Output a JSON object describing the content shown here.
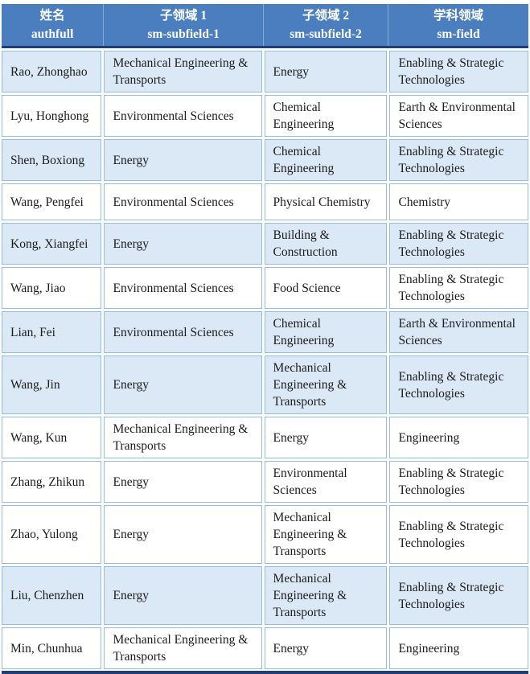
{
  "table": {
    "columns": [
      {
        "zh": "姓名",
        "en": "authfull"
      },
      {
        "zh": "子领域 1",
        "en": "sm-subfield-1"
      },
      {
        "zh": "子领域 2",
        "en": "sm-subfield-2"
      },
      {
        "zh": "学科领域",
        "en": "sm-field"
      }
    ],
    "rows": [
      {
        "authfull": "Rao, Zhonghao",
        "subfield1": "Mechanical Engineering & Transports",
        "subfield2": "Energy",
        "field": "Enabling & Strategic Technologies",
        "shaded": true
      },
      {
        "authfull": "Lyu, Honghong",
        "subfield1": "Environmental Sciences",
        "subfield2": "Chemical Engineering",
        "field": "Earth & Environmental Sciences",
        "shaded": false
      },
      {
        "authfull": "Shen, Boxiong",
        "subfield1": "Energy",
        "subfield2": "Chemical Engineering",
        "field": "Enabling & Strategic Technologies",
        "shaded": true
      },
      {
        "authfull": "Wang, Pengfei",
        "subfield1": "Environmental Sciences",
        "subfield2": "Physical Chemistry",
        "field": "Chemistry",
        "shaded": false
      },
      {
        "authfull": "Kong, Xiangfei",
        "subfield1": "Energy",
        "subfield2": "Building & Construction",
        "field": "Enabling & Strategic Technologies",
        "shaded": true
      },
      {
        "authfull": "Wang, Jiao",
        "subfield1": "Environmental Sciences",
        "subfield2": "Food Science",
        "field": "Enabling & Strategic Technologies",
        "shaded": false
      },
      {
        "authfull": "Lian, Fei",
        "subfield1": "Environmental Sciences",
        "subfield2": "Chemical Engineering",
        "field": "Earth & Environmental Sciences",
        "shaded": true
      },
      {
        "authfull": "Wang, Jin",
        "subfield1": "Energy",
        "subfield2": "Mechanical Engineering & Transports",
        "field": "Enabling & Strategic Technologies",
        "shaded": true
      },
      {
        "authfull": "Wang, Kun",
        "subfield1": "Mechanical Engineering & Transports",
        "subfield2": "Energy",
        "field": "Engineering",
        "shaded": false
      },
      {
        "authfull": "Zhang, Zhikun",
        "subfield1": "Energy",
        "subfield2": "Environmental Sciences",
        "field": "Enabling & Strategic Technologies",
        "shaded": false
      },
      {
        "authfull": "Zhao, Yulong",
        "subfield1": "Energy",
        "subfield2": "Mechanical Engineering & Transports",
        "field": "Enabling & Strategic Technologies",
        "shaded": false
      },
      {
        "authfull": "Liu, Chenzhen",
        "subfield1": "Energy",
        "subfield2": "Mechanical Engineering & Transports",
        "field": "Enabling & Strategic Technologies",
        "shaded": true
      },
      {
        "authfull": "Min, Chunhua",
        "subfield1": "Mechanical Engineering & Transports",
        "subfield2": "Energy",
        "field": "Engineering",
        "shaded": false
      }
    ]
  },
  "colors": {
    "header_bg": "#4a7ebf",
    "header_text": "#ffffff",
    "header_divider": "#86abd9",
    "dark_rule": "#1f3f6e",
    "shaded_row_bg": "#dbe8f5",
    "cell_border": "#95bce2",
    "body_text": "#1c1c1c"
  }
}
